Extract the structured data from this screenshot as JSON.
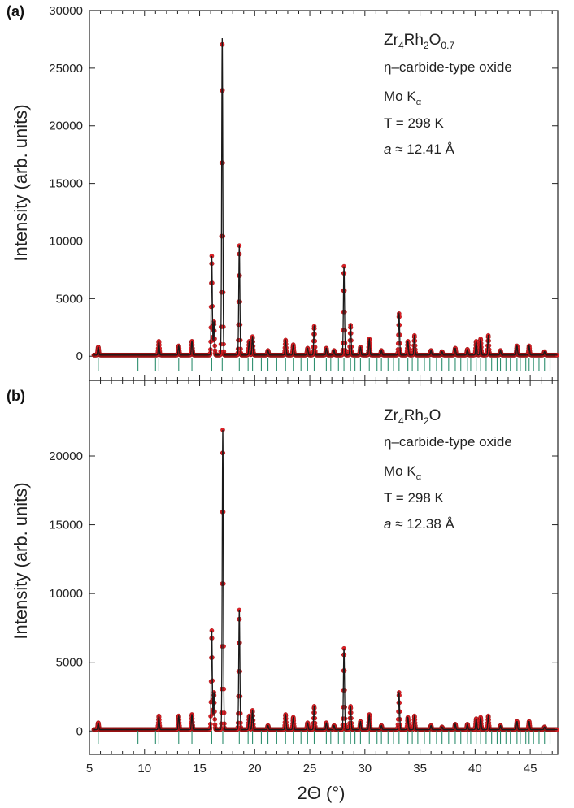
{
  "chart_data": [
    {
      "type": "line",
      "panel_label": "(a)",
      "ylabel": "Intensity (arb. units)",
      "ylim": [
        -2100,
        30000
      ],
      "yticks": [
        0,
        5000,
        10000,
        15000,
        20000,
        25000,
        30000
      ],
      "xlim": [
        5,
        47.5
      ],
      "xticks": [
        5,
        10,
        15,
        20,
        25,
        30,
        35,
        40,
        45
      ],
      "annotations": {
        "formula": {
          "base": "Zr",
          "s1": "4",
          "mid": "Rh",
          "s2": "2",
          "end": "O",
          "s3": "0.7"
        },
        "structure": "η–carbide-type oxide",
        "radiation": {
          "main": "Mo K",
          "sub": "α"
        },
        "temperature": "T = 298 K",
        "lattice": {
          "italic": "a",
          "rest": " ≈ 12.41 Å"
        }
      },
      "baseline": 100,
      "peaks": [
        {
          "x": 5.8,
          "y": 800
        },
        {
          "x": 11.3,
          "y": 1300
        },
        {
          "x": 13.1,
          "y": 900
        },
        {
          "x": 14.3,
          "y": 1300
        },
        {
          "x": 16.1,
          "y": 8700
        },
        {
          "x": 16.3,
          "y": 3000
        },
        {
          "x": 17.05,
          "y": 27600
        },
        {
          "x": 18.6,
          "y": 9600
        },
        {
          "x": 19.5,
          "y": 1300
        },
        {
          "x": 19.8,
          "y": 1700
        },
        {
          "x": 21.2,
          "y": 500
        },
        {
          "x": 22.8,
          "y": 1400
        },
        {
          "x": 23.5,
          "y": 1000
        },
        {
          "x": 24.8,
          "y": 700
        },
        {
          "x": 25.4,
          "y": 2600
        },
        {
          "x": 26.5,
          "y": 700
        },
        {
          "x": 27.2,
          "y": 500
        },
        {
          "x": 28.1,
          "y": 7800
        },
        {
          "x": 28.7,
          "y": 2700
        },
        {
          "x": 29.6,
          "y": 800
        },
        {
          "x": 30.4,
          "y": 1500
        },
        {
          "x": 31.5,
          "y": 500
        },
        {
          "x": 33.1,
          "y": 3700
        },
        {
          "x": 33.9,
          "y": 1300
        },
        {
          "x": 34.5,
          "y": 1800
        },
        {
          "x": 36.0,
          "y": 500
        },
        {
          "x": 37.0,
          "y": 400
        },
        {
          "x": 38.2,
          "y": 700
        },
        {
          "x": 39.3,
          "y": 600
        },
        {
          "x": 40.1,
          "y": 1300
        },
        {
          "x": 40.5,
          "y": 1500
        },
        {
          "x": 41.2,
          "y": 1800
        },
        {
          "x": 42.3,
          "y": 500
        },
        {
          "x": 43.8,
          "y": 900
        },
        {
          "x": 44.9,
          "y": 900
        },
        {
          "x": 46.3,
          "y": 400
        }
      ],
      "reflections": [
        5.8,
        9.4,
        11.0,
        11.3,
        13.1,
        14.3,
        16.1,
        17.05,
        18.6,
        19.4,
        19.8,
        20.6,
        21.2,
        22.0,
        22.8,
        23.5,
        24.2,
        24.8,
        25.4,
        26.5,
        26.9,
        27.6,
        28.1,
        28.7,
        29.1,
        29.6,
        30.4,
        31.1,
        31.5,
        32.1,
        32.6,
        33.1,
        33.9,
        34.3,
        34.8,
        35.4,
        35.9,
        36.5,
        37.0,
        37.6,
        38.2,
        38.7,
        39.3,
        39.6,
        40.1,
        40.5,
        41.0,
        41.5,
        42.0,
        42.3,
        42.8,
        43.2,
        43.8,
        44.1,
        44.6,
        44.9,
        45.3,
        45.8,
        46.3,
        46.8
      ]
    },
    {
      "type": "line",
      "panel_label": "(b)",
      "ylabel": "Intensity (arb. units)",
      "xlabel": "2Θ (°)",
      "ylim": [
        -1700,
        25500
      ],
      "yticks": [
        0,
        5000,
        10000,
        15000,
        20000
      ],
      "xlim": [
        5,
        47.5
      ],
      "xticks": [
        5,
        10,
        15,
        20,
        25,
        30,
        35,
        40,
        45
      ],
      "annotations": {
        "formula": {
          "base": "Zr",
          "s1": "4",
          "mid": "Rh",
          "s2": "2",
          "end": "O",
          "s3": ""
        },
        "structure": "η–carbide-type oxide",
        "radiation": {
          "main": "Mo K",
          "sub": "α"
        },
        "temperature": "T = 298 K",
        "lattice": {
          "italic": "a",
          "rest": " ≈ 12.38 Å"
        }
      },
      "baseline": 100,
      "peaks": [
        {
          "x": 5.8,
          "y": 600
        },
        {
          "x": 11.3,
          "y": 1100
        },
        {
          "x": 13.1,
          "y": 1100
        },
        {
          "x": 14.3,
          "y": 1200
        },
        {
          "x": 16.1,
          "y": 7300
        },
        {
          "x": 16.3,
          "y": 2800
        },
        {
          "x": 17.1,
          "y": 21900
        },
        {
          "x": 18.6,
          "y": 8800
        },
        {
          "x": 19.5,
          "y": 1100
        },
        {
          "x": 19.8,
          "y": 1500
        },
        {
          "x": 21.2,
          "y": 400
        },
        {
          "x": 22.8,
          "y": 1200
        },
        {
          "x": 23.5,
          "y": 1000
        },
        {
          "x": 24.8,
          "y": 600
        },
        {
          "x": 25.4,
          "y": 1800
        },
        {
          "x": 26.5,
          "y": 600
        },
        {
          "x": 27.2,
          "y": 400
        },
        {
          "x": 28.1,
          "y": 6000
        },
        {
          "x": 28.7,
          "y": 1800
        },
        {
          "x": 29.6,
          "y": 700
        },
        {
          "x": 30.4,
          "y": 1200
        },
        {
          "x": 31.5,
          "y": 400
        },
        {
          "x": 33.1,
          "y": 2800
        },
        {
          "x": 33.9,
          "y": 1000
        },
        {
          "x": 34.5,
          "y": 1100
        },
        {
          "x": 36.0,
          "y": 400
        },
        {
          "x": 37.0,
          "y": 300
        },
        {
          "x": 38.2,
          "y": 500
        },
        {
          "x": 39.3,
          "y": 500
        },
        {
          "x": 40.1,
          "y": 900
        },
        {
          "x": 40.5,
          "y": 1000
        },
        {
          "x": 41.2,
          "y": 1100
        },
        {
          "x": 42.3,
          "y": 400
        },
        {
          "x": 43.8,
          "y": 700
        },
        {
          "x": 44.9,
          "y": 700
        },
        {
          "x": 46.3,
          "y": 300
        }
      ],
      "reflections": [
        5.8,
        9.4,
        11.0,
        11.3,
        13.1,
        14.3,
        16.1,
        17.1,
        18.6,
        19.4,
        19.8,
        20.6,
        21.2,
        22.0,
        22.8,
        23.5,
        24.2,
        24.8,
        25.4,
        26.5,
        26.9,
        27.6,
        28.1,
        28.7,
        29.1,
        29.6,
        30.4,
        31.1,
        31.5,
        32.1,
        32.6,
        33.1,
        33.9,
        34.3,
        34.8,
        35.4,
        35.9,
        36.5,
        37.0,
        37.6,
        38.2,
        38.7,
        39.3,
        39.6,
        40.1,
        40.5,
        41.0,
        41.5,
        42.0,
        42.3,
        42.8,
        43.2,
        43.8,
        44.1,
        44.6,
        44.9,
        45.3,
        45.8,
        46.3,
        46.8
      ]
    }
  ],
  "colors": {
    "observed": "#e21f26",
    "observed_edge": "#8a1010",
    "calculated": "#1a1a1a",
    "reflections": "#2f8f6f",
    "axis": "#222222"
  }
}
